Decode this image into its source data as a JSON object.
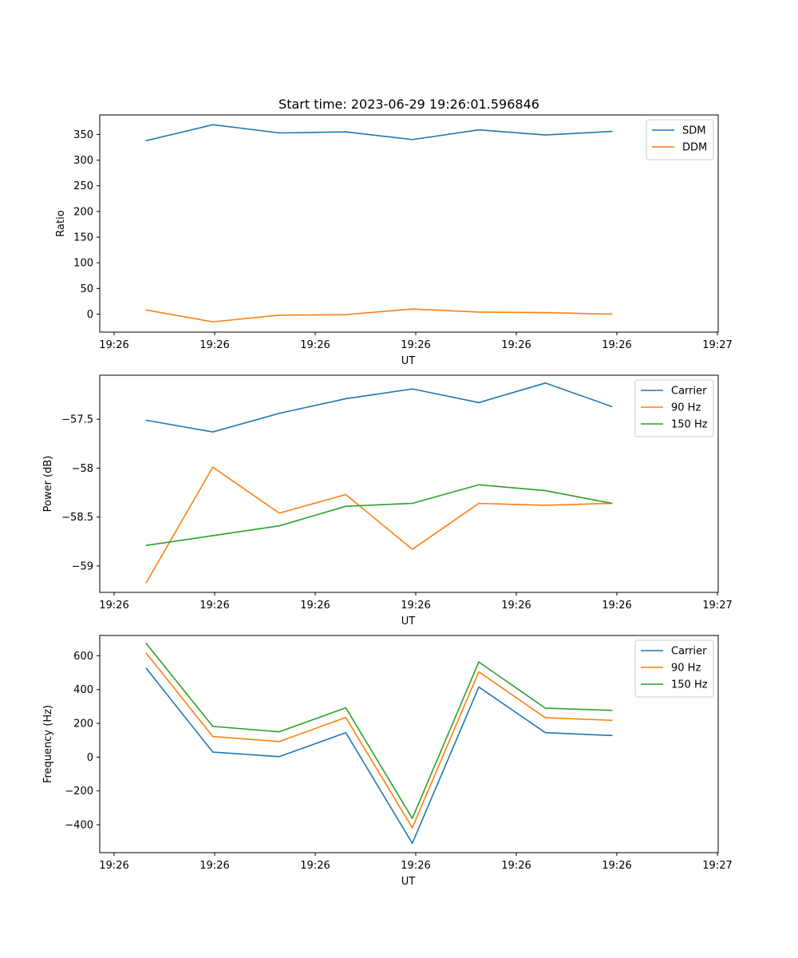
{
  "chart_data": [
    {
      "type": "line",
      "title": "Start time: 2023-06-29 19:26:01.596846",
      "xlabel": "UT",
      "ylabel": "Ratio",
      "x_tick_labels": [
        "19:26",
        "19:26",
        "19:26",
        "19:26",
        "19:26",
        "19:26",
        "19:26"
      ],
      "x_tick_labels_extra": "19:27",
      "x": [
        1,
        2,
        3,
        4,
        5,
        6,
        7,
        8
      ],
      "xlim": [
        0.3,
        9.6
      ],
      "ylim": [
        -35,
        388
      ],
      "y_ticks": [
        0,
        50,
        100,
        150,
        200,
        250,
        300,
        350
      ],
      "grid": false,
      "legend": "top-right",
      "series": [
        {
          "name": "SDM",
          "color": "#1f77b4",
          "values": [
            338,
            369,
            353,
            355,
            340,
            359,
            349,
            356
          ]
        },
        {
          "name": "DDM",
          "color": "#ff7f0e",
          "values": [
            8,
            -15,
            -2,
            -1,
            10,
            4,
            3,
            0
          ]
        }
      ]
    },
    {
      "type": "line",
      "title": "",
      "xlabel": "UT",
      "ylabel": "Power (dB)",
      "x_tick_labels": [
        "19:26",
        "19:26",
        "19:26",
        "19:26",
        "19:26",
        "19:26",
        "19:26"
      ],
      "x_tick_labels_extra": "19:27",
      "x": [
        1,
        2,
        3,
        4,
        5,
        6,
        7,
        8
      ],
      "xlim": [
        0.3,
        9.6
      ],
      "ylim": [
        -59.27,
        -57.05
      ],
      "y_ticks": [
        -59.0,
        -58.5,
        -58.0,
        -57.5
      ],
      "grid": false,
      "legend": "top-right",
      "series": [
        {
          "name": "Carrier",
          "color": "#1f77b4",
          "values": [
            -57.51,
            -57.63,
            -57.44,
            -57.29,
            -57.19,
            -57.33,
            -57.13,
            -57.37
          ]
        },
        {
          "name": "90 Hz",
          "color": "#ff7f0e",
          "values": [
            -59.17,
            -57.99,
            -58.46,
            -58.27,
            -58.83,
            -58.36,
            -58.38,
            -58.36
          ]
        },
        {
          "name": "150 Hz",
          "color": "#2ca02c",
          "values": [
            -58.79,
            -58.69,
            -58.59,
            -58.39,
            -58.36,
            -58.17,
            -58.23,
            -58.36
          ]
        }
      ]
    },
    {
      "type": "line",
      "title": "",
      "xlabel": "UT",
      "ylabel": "Frequency (Hz)",
      "x_tick_labels": [
        "19:26",
        "19:26",
        "19:26",
        "19:26",
        "19:26",
        "19:26",
        "19:26"
      ],
      "x_tick_labels_extra": "19:27",
      "x": [
        1,
        2,
        3,
        4,
        5,
        6,
        7,
        8
      ],
      "xlim": [
        0.3,
        9.6
      ],
      "ylim": [
        -565,
        720
      ],
      "y_ticks": [
        -400,
        -200,
        0,
        200,
        400,
        600
      ],
      "grid": false,
      "legend": "top-right",
      "series": [
        {
          "name": "Carrier",
          "color": "#1f77b4",
          "values": [
            525,
            30,
            3,
            145,
            -510,
            415,
            145,
            128
          ]
        },
        {
          "name": "90 Hz",
          "color": "#ff7f0e",
          "values": [
            615,
            122,
            92,
            235,
            -418,
            505,
            233,
            218
          ]
        },
        {
          "name": "150 Hz",
          "color": "#2ca02c",
          "values": [
            672,
            182,
            150,
            292,
            -362,
            563,
            290,
            277
          ]
        }
      ]
    }
  ]
}
